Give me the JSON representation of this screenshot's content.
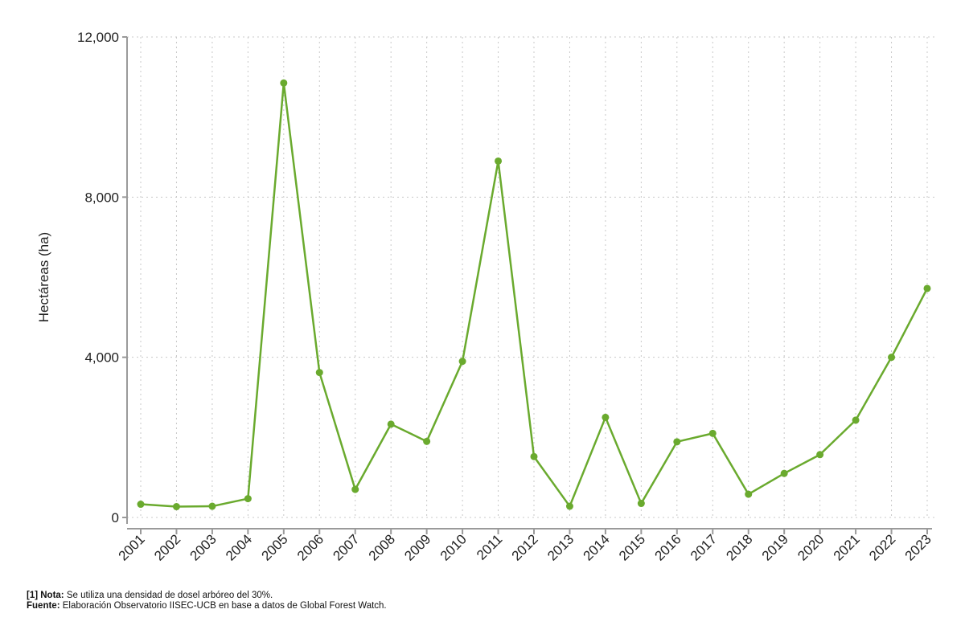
{
  "chart_data": {
    "type": "line",
    "x": [
      "2001",
      "2002",
      "2003",
      "2004",
      "2005",
      "2006",
      "2007",
      "2008",
      "2009",
      "2010",
      "2011",
      "2012",
      "2013",
      "2014",
      "2015",
      "2016",
      "2017",
      "2018",
      "2019",
      "2020",
      "2021",
      "2022",
      "2023"
    ],
    "series": [
      {
        "values": [
          330,
          270,
          280,
          470,
          10850,
          3620,
          700,
          2330,
          1900,
          3900,
          8900,
          1520,
          280,
          2500,
          350,
          1890,
          2100,
          580,
          1100,
          1570,
          2430,
          4000,
          5720
        ],
        "color": "#6aaa2e"
      }
    ],
    "ylabel": "Hectáreas (ha)",
    "ylim": [
      0,
      12000
    ],
    "yticks": [
      0,
      4000,
      8000,
      12000
    ],
    "ytick_labels": [
      "0",
      "4,000",
      "8,000",
      "12,000"
    ],
    "grid": true
  },
  "footnotes": {
    "note_label": "[1] Nota:",
    "note_text": " Se utiliza una densidad de dosel arbóreo del 30%.",
    "source_label": "Fuente:",
    "source_text": " Elaboración Observatorio IISEC-UCB en base a datos de Global Forest Watch."
  }
}
